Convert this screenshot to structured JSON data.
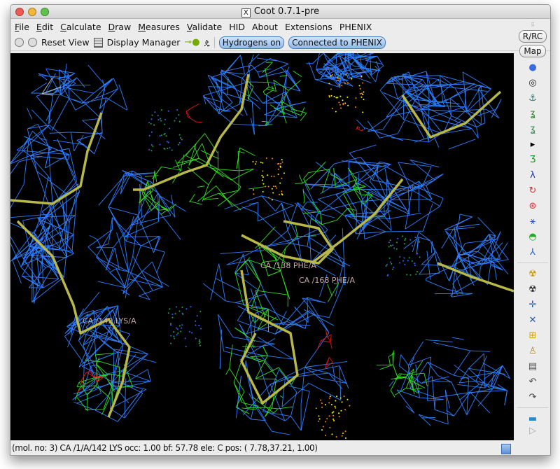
{
  "window": {
    "title": "Coot 0.7.1-pre"
  },
  "menu": [
    {
      "label": "File",
      "u": "F",
      "rest": "ile"
    },
    {
      "label": "Edit",
      "u": "E",
      "rest": "dit"
    },
    {
      "label": "Calculate",
      "u": "C",
      "rest": "alculate"
    },
    {
      "label": "Draw",
      "u": "D",
      "rest": "raw"
    },
    {
      "label": "Measures",
      "u": "M",
      "rest": "easures"
    },
    {
      "label": "Validate",
      "u": "V",
      "rest": "alidate"
    },
    {
      "label": "HID",
      "u": "",
      "rest": "HID"
    },
    {
      "label": "About",
      "u": "",
      "rest": "About"
    },
    {
      "label": "Extensions",
      "u": "",
      "rest": "Extensions"
    },
    {
      "label": "PHENIX",
      "u": "",
      "rest": "PHENIX"
    }
  ],
  "toolbar": {
    "reset_view": "Reset View",
    "display_manager": "Display Manager",
    "hydrogens": "Hydrogens on",
    "phenix": "Connected to PHENIX"
  },
  "right_toolbar": {
    "rrc": "R/RC",
    "map": "Map",
    "icons": [
      "refine-sphere-icon",
      "centre-icon",
      "anchor-icon",
      "rotamer-icon",
      "flip-peptide-icon",
      "arrow-right-icon",
      "add-residue-icon",
      "backbone-icon",
      "rotate-translate-icon",
      "rigid-body-icon",
      "torsion-icon",
      "side-chain-icon",
      "mutate-icon",
      "radioactive-small-icon",
      "radioactive-icon",
      "add-atom-icon",
      "delete-atom-icon",
      "add-terminal-icon",
      "pipette-icon",
      "trash-icon",
      "undo-icon",
      "redo-icon",
      "flag-icon"
    ]
  },
  "labels": {
    "lys": "CA /142 LYS/A",
    "phe138": "CA /138 PHE/A",
    "phe168": "CA /168 PHE/A"
  },
  "status": "(mol. no: 3)  CA /1/A/142 LYS occ:  1.00 bf: 57.78 ele:  C pos: ( 7.78,37.21, 1.00)",
  "colors": {
    "map_blue": "#2f7fff",
    "diff_green": "#33dd22",
    "diff_red": "#dd1111",
    "backbone": "#b8b848"
  }
}
